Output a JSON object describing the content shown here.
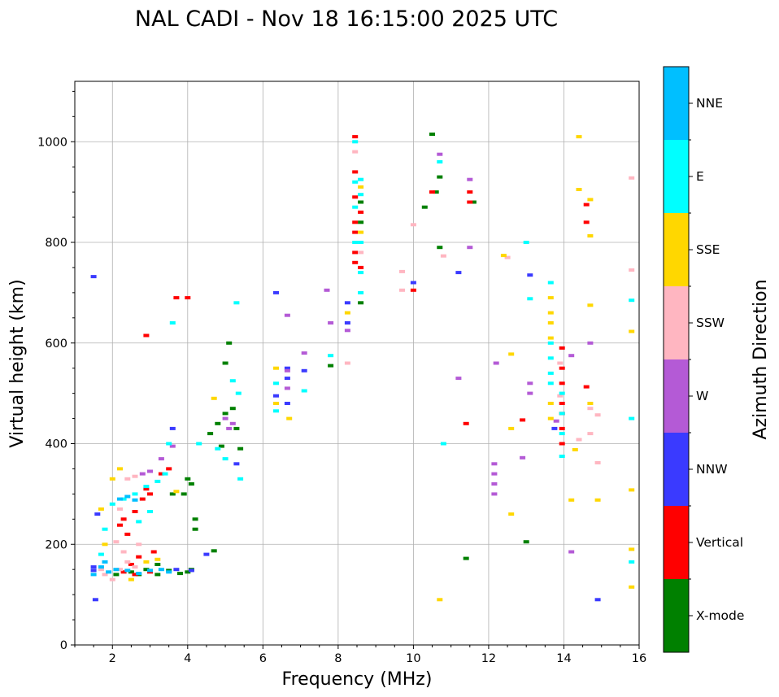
{
  "chart_data": {
    "type": "scatter",
    "title": "NAL CADI - Nov 18 16:15:00 2025 UTC",
    "xlabel": "Frequency (MHz)",
    "ylabel": "Virtual height (km)",
    "xlim": [
      1,
      16
    ],
    "ylim": [
      0,
      1120
    ],
    "xticks": [
      2,
      4,
      6,
      8,
      10,
      12,
      14,
      16
    ],
    "yticks": [
      0,
      200,
      400,
      600,
      800,
      1000
    ],
    "grid": true,
    "colorbar": {
      "label": "Azimuth Direction",
      "categories": [
        {
          "name": "X-mode",
          "color": "#008000"
        },
        {
          "name": "Vertical",
          "color": "#ff0000"
        },
        {
          "name": "NNW",
          "color": "#3a3aff"
        },
        {
          "name": "W",
          "color": "#b45ad6"
        },
        {
          "name": "SSW",
          "color": "#ffb6c1"
        },
        {
          "name": "SSE",
          "color": "#ffd700"
        },
        {
          "name": "E",
          "color": "#00ffff"
        },
        {
          "name": "NNE",
          "color": "#00bfff"
        }
      ]
    },
    "series": [
      {
        "name": "X-mode",
        "points": [
          [
            2.9,
            150
          ],
          [
            3.2,
            160
          ],
          [
            3.5,
            148
          ],
          [
            3.8,
            142
          ],
          [
            4.0,
            145
          ],
          [
            4.1,
            150
          ],
          [
            4.2,
            230
          ],
          [
            4.2,
            250
          ],
          [
            4.0,
            330
          ],
          [
            4.1,
            320
          ],
          [
            3.9,
            300
          ],
          [
            4.6,
            420
          ],
          [
            4.8,
            440
          ],
          [
            5.0,
            460
          ],
          [
            5.2,
            470
          ],
          [
            5.3,
            430
          ],
          [
            5.4,
            390
          ],
          [
            4.9,
            395
          ],
          [
            5.0,
            560
          ],
          [
            5.1,
            600
          ],
          [
            2.7,
            140
          ],
          [
            2.5,
            145
          ],
          [
            2.1,
            140
          ],
          [
            8.6,
            680
          ],
          [
            8.6,
            840
          ],
          [
            8.6,
            880
          ],
          [
            10.5,
            1015
          ],
          [
            10.6,
            900
          ],
          [
            10.7,
            930
          ],
          [
            10.3,
            870
          ],
          [
            10.7,
            790
          ],
          [
            11.6,
            880
          ],
          [
            13.0,
            205
          ],
          [
            11.4,
            172
          ],
          [
            7.8,
            555
          ],
          [
            3.6,
            300
          ],
          [
            3.2,
            140
          ],
          [
            4.7,
            187
          ]
        ]
      },
      {
        "name": "Vertical",
        "points": [
          [
            2.2,
            238
          ],
          [
            2.3,
            250
          ],
          [
            2.4,
            220
          ],
          [
            2.6,
            265
          ],
          [
            2.8,
            290
          ],
          [
            3.0,
            300
          ],
          [
            2.9,
            310
          ],
          [
            2.7,
            175
          ],
          [
            2.5,
            160
          ],
          [
            2.3,
            145
          ],
          [
            2.6,
            140
          ],
          [
            3.0,
            145
          ],
          [
            3.1,
            185
          ],
          [
            2.9,
            615
          ],
          [
            3.7,
            690
          ],
          [
            4.0,
            690
          ],
          [
            3.3,
            340
          ],
          [
            3.5,
            350
          ],
          [
            8.45,
            760
          ],
          [
            8.45,
            780
          ],
          [
            8.45,
            820
          ],
          [
            8.45,
            840
          ],
          [
            8.45,
            890
          ],
          [
            8.45,
            940
          ],
          [
            8.45,
            1010
          ],
          [
            8.6,
            860
          ],
          [
            8.6,
            750
          ],
          [
            10.5,
            900
          ],
          [
            10.0,
            705
          ],
          [
            11.5,
            880
          ],
          [
            11.5,
            900
          ],
          [
            11.4,
            440
          ],
          [
            12.9,
            447
          ],
          [
            13.95,
            590
          ],
          [
            13.95,
            550
          ],
          [
            13.95,
            520
          ],
          [
            13.95,
            480
          ],
          [
            13.95,
            460
          ],
          [
            13.95,
            430
          ],
          [
            13.95,
            400
          ],
          [
            14.6,
            875
          ],
          [
            14.6,
            840
          ],
          [
            14.6,
            513
          ]
        ]
      },
      {
        "name": "NNW",
        "points": [
          [
            1.5,
            148
          ],
          [
            1.5,
            155
          ],
          [
            1.6,
            260
          ],
          [
            1.5,
            732
          ],
          [
            1.55,
            90
          ],
          [
            3.6,
            430
          ],
          [
            3.7,
            150
          ],
          [
            4.5,
            180
          ],
          [
            5.3,
            360
          ],
          [
            6.35,
            700
          ],
          [
            6.35,
            495
          ],
          [
            6.65,
            480
          ],
          [
            6.65,
            530
          ],
          [
            6.65,
            550
          ],
          [
            7.1,
            545
          ],
          [
            8.25,
            680
          ],
          [
            8.25,
            640
          ],
          [
            10.0,
            720
          ],
          [
            11.2,
            740
          ],
          [
            13.1,
            735
          ],
          [
            13.75,
            430
          ],
          [
            14.9,
            90
          ],
          [
            4.1,
            148
          ]
        ]
      },
      {
        "name": "W",
        "points": [
          [
            2.8,
            340
          ],
          [
            3.0,
            345
          ],
          [
            3.3,
            370
          ],
          [
            3.6,
            395
          ],
          [
            5.0,
            450
          ],
          [
            5.2,
            440
          ],
          [
            5.1,
            430
          ],
          [
            6.65,
            545
          ],
          [
            6.65,
            510
          ],
          [
            6.65,
            655
          ],
          [
            7.7,
            705
          ],
          [
            7.1,
            580
          ],
          [
            7.8,
            640
          ],
          [
            8.25,
            625
          ],
          [
            11.5,
            925
          ],
          [
            11.2,
            530
          ],
          [
            12.2,
            560
          ],
          [
            12.15,
            360
          ],
          [
            12.15,
            340
          ],
          [
            12.15,
            320
          ],
          [
            12.15,
            300
          ],
          [
            13.1,
            520
          ],
          [
            13.1,
            500
          ],
          [
            12.9,
            372
          ],
          [
            14.2,
            575
          ],
          [
            14.7,
            600
          ],
          [
            14.2,
            185
          ],
          [
            10.7,
            975
          ],
          [
            11.5,
            790
          ],
          [
            13.8,
            445
          ]
        ]
      },
      {
        "name": "SSW",
        "points": [
          [
            1.7,
            150
          ],
          [
            1.8,
            140
          ],
          [
            2.0,
            130
          ],
          [
            2.2,
            150
          ],
          [
            2.4,
            165
          ],
          [
            2.6,
            155
          ],
          [
            2.3,
            185
          ],
          [
            2.1,
            205
          ],
          [
            2.4,
            330
          ],
          [
            2.6,
            335
          ],
          [
            2.2,
            270
          ],
          [
            2.7,
            200
          ],
          [
            8.45,
            980
          ],
          [
            8.25,
            560
          ],
          [
            8.6,
            780
          ],
          [
            9.7,
            742
          ],
          [
            9.7,
            705
          ],
          [
            10.0,
            835
          ],
          [
            10.8,
            773
          ],
          [
            12.5,
            770
          ],
          [
            14.4,
            408
          ],
          [
            14.7,
            420
          ],
          [
            14.7,
            470
          ],
          [
            14.9,
            457
          ],
          [
            14.9,
            362
          ],
          [
            15.8,
            928
          ],
          [
            15.8,
            745
          ],
          [
            13.9,
            495
          ],
          [
            13.9,
            560
          ]
        ]
      },
      {
        "name": "SSE",
        "points": [
          [
            1.7,
            270
          ],
          [
            1.8,
            200
          ],
          [
            2.0,
            330
          ],
          [
            2.2,
            350
          ],
          [
            2.5,
            130
          ],
          [
            2.9,
            165
          ],
          [
            3.2,
            170
          ],
          [
            3.7,
            305
          ],
          [
            4.7,
            490
          ],
          [
            6.35,
            550
          ],
          [
            6.35,
            480
          ],
          [
            6.7,
            450
          ],
          [
            8.25,
            660
          ],
          [
            8.6,
            820
          ],
          [
            8.6,
            910
          ],
          [
            12.4,
            774
          ],
          [
            12.6,
            578
          ],
          [
            12.6,
            430
          ],
          [
            12.6,
            260
          ],
          [
            13.65,
            690
          ],
          [
            13.65,
            660
          ],
          [
            13.65,
            640
          ],
          [
            13.65,
            610
          ],
          [
            13.65,
            480
          ],
          [
            13.65,
            450
          ],
          [
            14.3,
            388
          ],
          [
            14.2,
            288
          ],
          [
            14.4,
            1010
          ],
          [
            14.4,
            905
          ],
          [
            14.7,
            885
          ],
          [
            14.7,
            813
          ],
          [
            14.7,
            675
          ],
          [
            14.7,
            480
          ],
          [
            14.9,
            288
          ],
          [
            15.8,
            623
          ],
          [
            15.8,
            308
          ],
          [
            15.8,
            190
          ],
          [
            15.8,
            115
          ],
          [
            10.7,
            90
          ]
        ]
      },
      {
        "name": "E",
        "points": [
          [
            1.7,
            180
          ],
          [
            1.8,
            230
          ],
          [
            2.0,
            280
          ],
          [
            2.3,
            290
          ],
          [
            2.6,
            300
          ],
          [
            2.9,
            315
          ],
          [
            3.2,
            325
          ],
          [
            3.4,
            340
          ],
          [
            3.0,
            265
          ],
          [
            2.7,
            245
          ],
          [
            3.6,
            640
          ],
          [
            3.5,
            400
          ],
          [
            4.3,
            400
          ],
          [
            4.8,
            390
          ],
          [
            5.0,
            370
          ],
          [
            5.4,
            330
          ],
          [
            5.2,
            525
          ],
          [
            5.3,
            680
          ],
          [
            5.35,
            500
          ],
          [
            6.35,
            520
          ],
          [
            6.35,
            465
          ],
          [
            7.1,
            505
          ],
          [
            7.8,
            575
          ],
          [
            8.45,
            1000
          ],
          [
            8.45,
            920
          ],
          [
            8.45,
            870
          ],
          [
            8.45,
            800
          ],
          [
            8.6,
            925
          ],
          [
            8.6,
            895
          ],
          [
            8.6,
            800
          ],
          [
            8.6,
            740
          ],
          [
            8.6,
            700
          ],
          [
            10.8,
            400
          ],
          [
            10.7,
            960
          ],
          [
            13.0,
            800
          ],
          [
            13.1,
            688
          ],
          [
            13.65,
            720
          ],
          [
            13.65,
            600
          ],
          [
            13.65,
            570
          ],
          [
            13.65,
            540
          ],
          [
            13.65,
            520
          ],
          [
            13.95,
            500
          ],
          [
            13.95,
            460
          ],
          [
            13.95,
            420
          ],
          [
            13.95,
            375
          ],
          [
            15.8,
            685
          ],
          [
            15.8,
            450
          ],
          [
            15.8,
            165
          ]
        ]
      },
      {
        "name": "NNE",
        "points": [
          [
            1.5,
            140
          ],
          [
            1.7,
            155
          ],
          [
            1.9,
            145
          ],
          [
            2.1,
            150
          ],
          [
            2.4,
            148
          ],
          [
            2.7,
            142
          ],
          [
            3.0,
            148
          ],
          [
            3.3,
            150
          ],
          [
            2.2,
            290
          ],
          [
            2.4,
            295
          ],
          [
            2.6,
            288
          ],
          [
            1.8,
            165
          ],
          [
            3.5,
            145
          ]
        ]
      }
    ]
  }
}
